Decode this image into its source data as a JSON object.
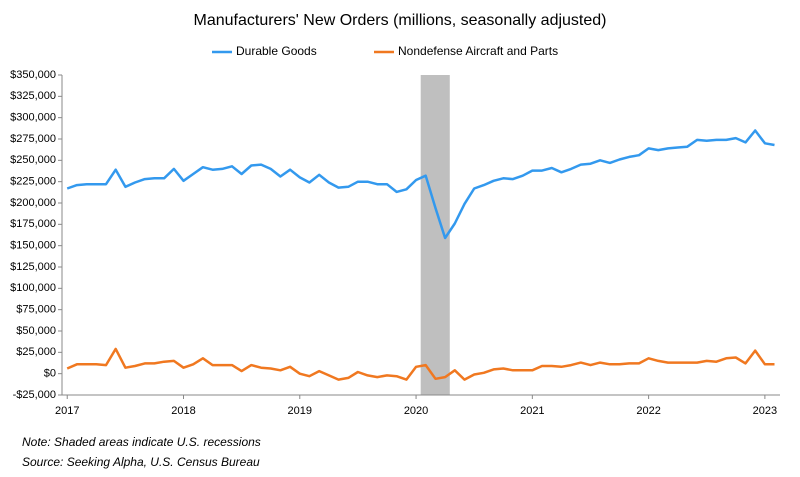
{
  "chart_data": {
    "type": "line",
    "title": "Manufacturers' New Orders (millions, seasonally adjusted)",
    "notes": [
      "Note: Shaded areas indicate U.S. recessions",
      "Source: Seeking Alpha, U.S. Census Bureau"
    ],
    "recessions": [
      [
        2020.04,
        2020.29
      ]
    ],
    "recession_color": "#bfbfbf",
    "x": [
      2017,
      2017.083,
      2017.167,
      2017.25,
      2017.333,
      2017.417,
      2017.5,
      2017.583,
      2017.667,
      2017.75,
      2017.833,
      2017.917,
      2018,
      2018.083,
      2018.167,
      2018.25,
      2018.333,
      2018.417,
      2018.5,
      2018.583,
      2018.667,
      2018.75,
      2018.833,
      2018.917,
      2019,
      2019.083,
      2019.167,
      2019.25,
      2019.333,
      2019.417,
      2019.5,
      2019.583,
      2019.667,
      2019.75,
      2019.833,
      2019.917,
      2020,
      2020.083,
      2020.167,
      2020.25,
      2020.333,
      2020.417,
      2020.5,
      2020.583,
      2020.667,
      2020.75,
      2020.833,
      2020.917,
      2021,
      2021.083,
      2021.167,
      2021.25,
      2021.333,
      2021.417,
      2021.5,
      2021.583,
      2021.667,
      2021.75,
      2021.833,
      2021.917,
      2022,
      2022.083,
      2022.167,
      2022.25,
      2022.333,
      2022.417,
      2022.5,
      2022.583,
      2022.667,
      2022.75,
      2022.833,
      2022.917,
      2023,
      2023.083
    ],
    "series": [
      {
        "name": "Durable Goods",
        "color": "#3399ee",
        "values": [
          217000,
          221000,
          222000,
          222000,
          222000,
          239000,
          219000,
          224000,
          228000,
          229000,
          229000,
          240000,
          226000,
          234000,
          242000,
          239000,
          240000,
          243000,
          234000,
          244000,
          245000,
          240000,
          231000,
          239000,
          230000,
          224000,
          233000,
          224000,
          218000,
          219000,
          225000,
          225000,
          222000,
          222000,
          213000,
          216000,
          227000,
          232000,
          194000,
          159000,
          176000,
          199000,
          217000,
          221000,
          226000,
          229000,
          228000,
          232000,
          238000,
          238000,
          241000,
          236000,
          240000,
          245000,
          246000,
          250000,
          247000,
          251000,
          254000,
          256000,
          264000,
          262000,
          264000,
          265000,
          266000,
          274000,
          273000,
          274000,
          274000,
          276000,
          271000,
          285000,
          270000,
          268000
        ]
      },
      {
        "name": "Nondefense Aircraft and Parts",
        "color": "#f07820",
        "values": [
          6000,
          11000,
          11000,
          11000,
          10000,
          29000,
          7000,
          9000,
          12000,
          12000,
          14000,
          15000,
          7000,
          11000,
          18000,
          10000,
          10000,
          10000,
          3000,
          10000,
          7000,
          6000,
          4000,
          8000,
          0,
          -3000,
          3000,
          -2000,
          -7000,
          -5000,
          2000,
          -2000,
          -4000,
          -2000,
          -3000,
          -7000,
          8000,
          10000,
          -6000,
          -4000,
          4000,
          -7000,
          -1000,
          1000,
          5000,
          6000,
          4000,
          4000,
          4000,
          9000,
          9000,
          8000,
          10000,
          13000,
          10000,
          13000,
          11000,
          11000,
          12000,
          12000,
          18000,
          15000,
          13000,
          13000,
          13000,
          13000,
          15000,
          14000,
          18000,
          19000,
          12000,
          27000,
          11000,
          11000
        ]
      }
    ],
    "xlim": [
      2016.955,
      2023.13
    ],
    "xticks": [
      2017,
      2018,
      2019,
      2020,
      2021,
      2022,
      2023
    ],
    "ylim": [
      -25000,
      350000
    ],
    "yticks": [
      {
        "value": -25000,
        "label": "-$25,000"
      },
      {
        "value": 0,
        "label": "$0"
      },
      {
        "value": 25000,
        "label": "$25,000"
      },
      {
        "value": 50000,
        "label": "$50,000"
      },
      {
        "value": 75000,
        "label": "$75,000"
      },
      {
        "value": 100000,
        "label": "$100,000"
      },
      {
        "value": 125000,
        "label": "$125,000"
      },
      {
        "value": 150000,
        "label": "$150,000"
      },
      {
        "value": 175000,
        "label": "$175,000"
      },
      {
        "value": 200000,
        "label": "$200,000"
      },
      {
        "value": 225000,
        "label": "$225,000"
      },
      {
        "value": 250000,
        "label": "$250,000"
      },
      {
        "value": 275000,
        "label": "$275,000"
      },
      {
        "value": 300000,
        "label": "$300,000"
      },
      {
        "value": 325000,
        "label": "$325,000"
      },
      {
        "value": 350000,
        "label": "$350,000"
      }
    ],
    "legend": "top"
  }
}
